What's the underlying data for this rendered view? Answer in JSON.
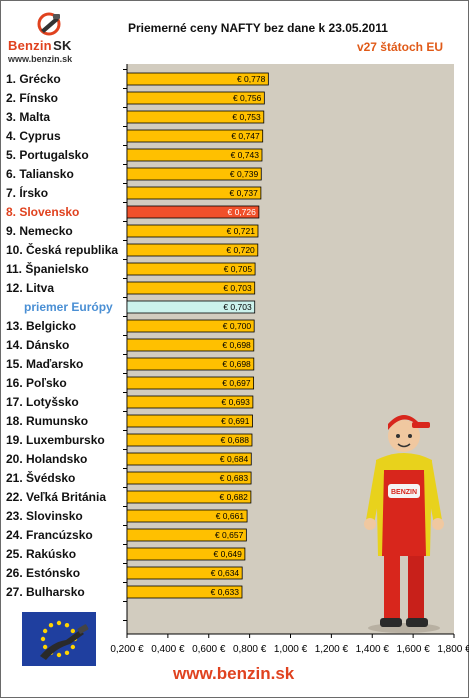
{
  "logo": {
    "brand_main": "Benzin",
    "brand_suffix": "SK",
    "site": "www.benzin.sk"
  },
  "header": {
    "title": "Priemerné ceny NAFTY bez dane k 23.05.2011",
    "subtitle": "v27 štátoch EU"
  },
  "footer": {
    "site": "www.benzin.sk"
  },
  "colors": {
    "bar": "#ffc000",
    "highlight": "#f0502a",
    "average": "#ccf2ec",
    "plot_bg": "#d2ccbf",
    "accent": "#e0421f",
    "average_label": "#4a8fd4"
  },
  "icons": {
    "logo": "benzin-logo-icon",
    "flag": "eu-flag-fuel-nozzle-icon",
    "mascot": "gas-station-attendant-mascot"
  },
  "chart_data": {
    "type": "bar",
    "orientation": "horizontal",
    "title": "Priemerné ceny NAFTY bez dane k 23.05.2011",
    "subtitle": "v27 štátoch EU",
    "categories": [
      "1. Grécko",
      "2. Fínsko",
      "3. Malta",
      "4. Cyprus",
      "5. Portugalsko",
      "6. Taliansko",
      "7. Írsko",
      "8. Slovensko",
      "9. Nemecko",
      "10. Česká republika",
      "11. Španielsko",
      "12. Litva",
      "priemer Európy",
      "13. Belgicko",
      "14. Dánsko",
      "15. Maďarsko",
      "16. Poľsko",
      "17. Lotyšsko",
      "18. Rumunsko",
      "19. Luxembursko",
      "20. Holandsko",
      "21. Švédsko",
      "22. Veľká Británia",
      "23. Slovinsko",
      "24. Francúzsko",
      "25. Rakúsko",
      "26. Estónsko",
      "27. Bulharsko"
    ],
    "values": [
      0.778,
      0.756,
      0.753,
      0.747,
      0.743,
      0.739,
      0.737,
      0.726,
      0.721,
      0.72,
      0.705,
      0.703,
      0.703,
      0.7,
      0.698,
      0.698,
      0.697,
      0.693,
      0.691,
      0.688,
      0.684,
      0.683,
      0.682,
      0.661,
      0.657,
      0.649,
      0.634,
      0.633
    ],
    "value_labels": [
      "€ 0,778",
      "€ 0,756",
      "€ 0,753",
      "€ 0,747",
      "€ 0,743",
      "€ 0,739",
      "€ 0,737",
      "€ 0,726",
      "€ 0,721",
      "€ 0,720",
      "€ 0,705",
      "€ 0,703",
      "€ 0,703",
      "€ 0,700",
      "€ 0,698",
      "€ 0,698",
      "€ 0,697",
      "€ 0,693",
      "€ 0,691",
      "€ 0,688",
      "€ 0,684",
      "€ 0,683",
      "€ 0,682",
      "€ 0,661",
      "€ 0,657",
      "€ 0,649",
      "€ 0,634",
      "€ 0,633"
    ],
    "highlight_index": 7,
    "average_index": 12,
    "x_ticks": [
      "0,200 €",
      "0,400 €",
      "0,600 €",
      "0,800 €",
      "1,000 €",
      "1,200 €",
      "1,400 €",
      "1,600 €",
      "1,800 €"
    ],
    "xlim": [
      0,
      1.8
    ],
    "grid": false
  }
}
